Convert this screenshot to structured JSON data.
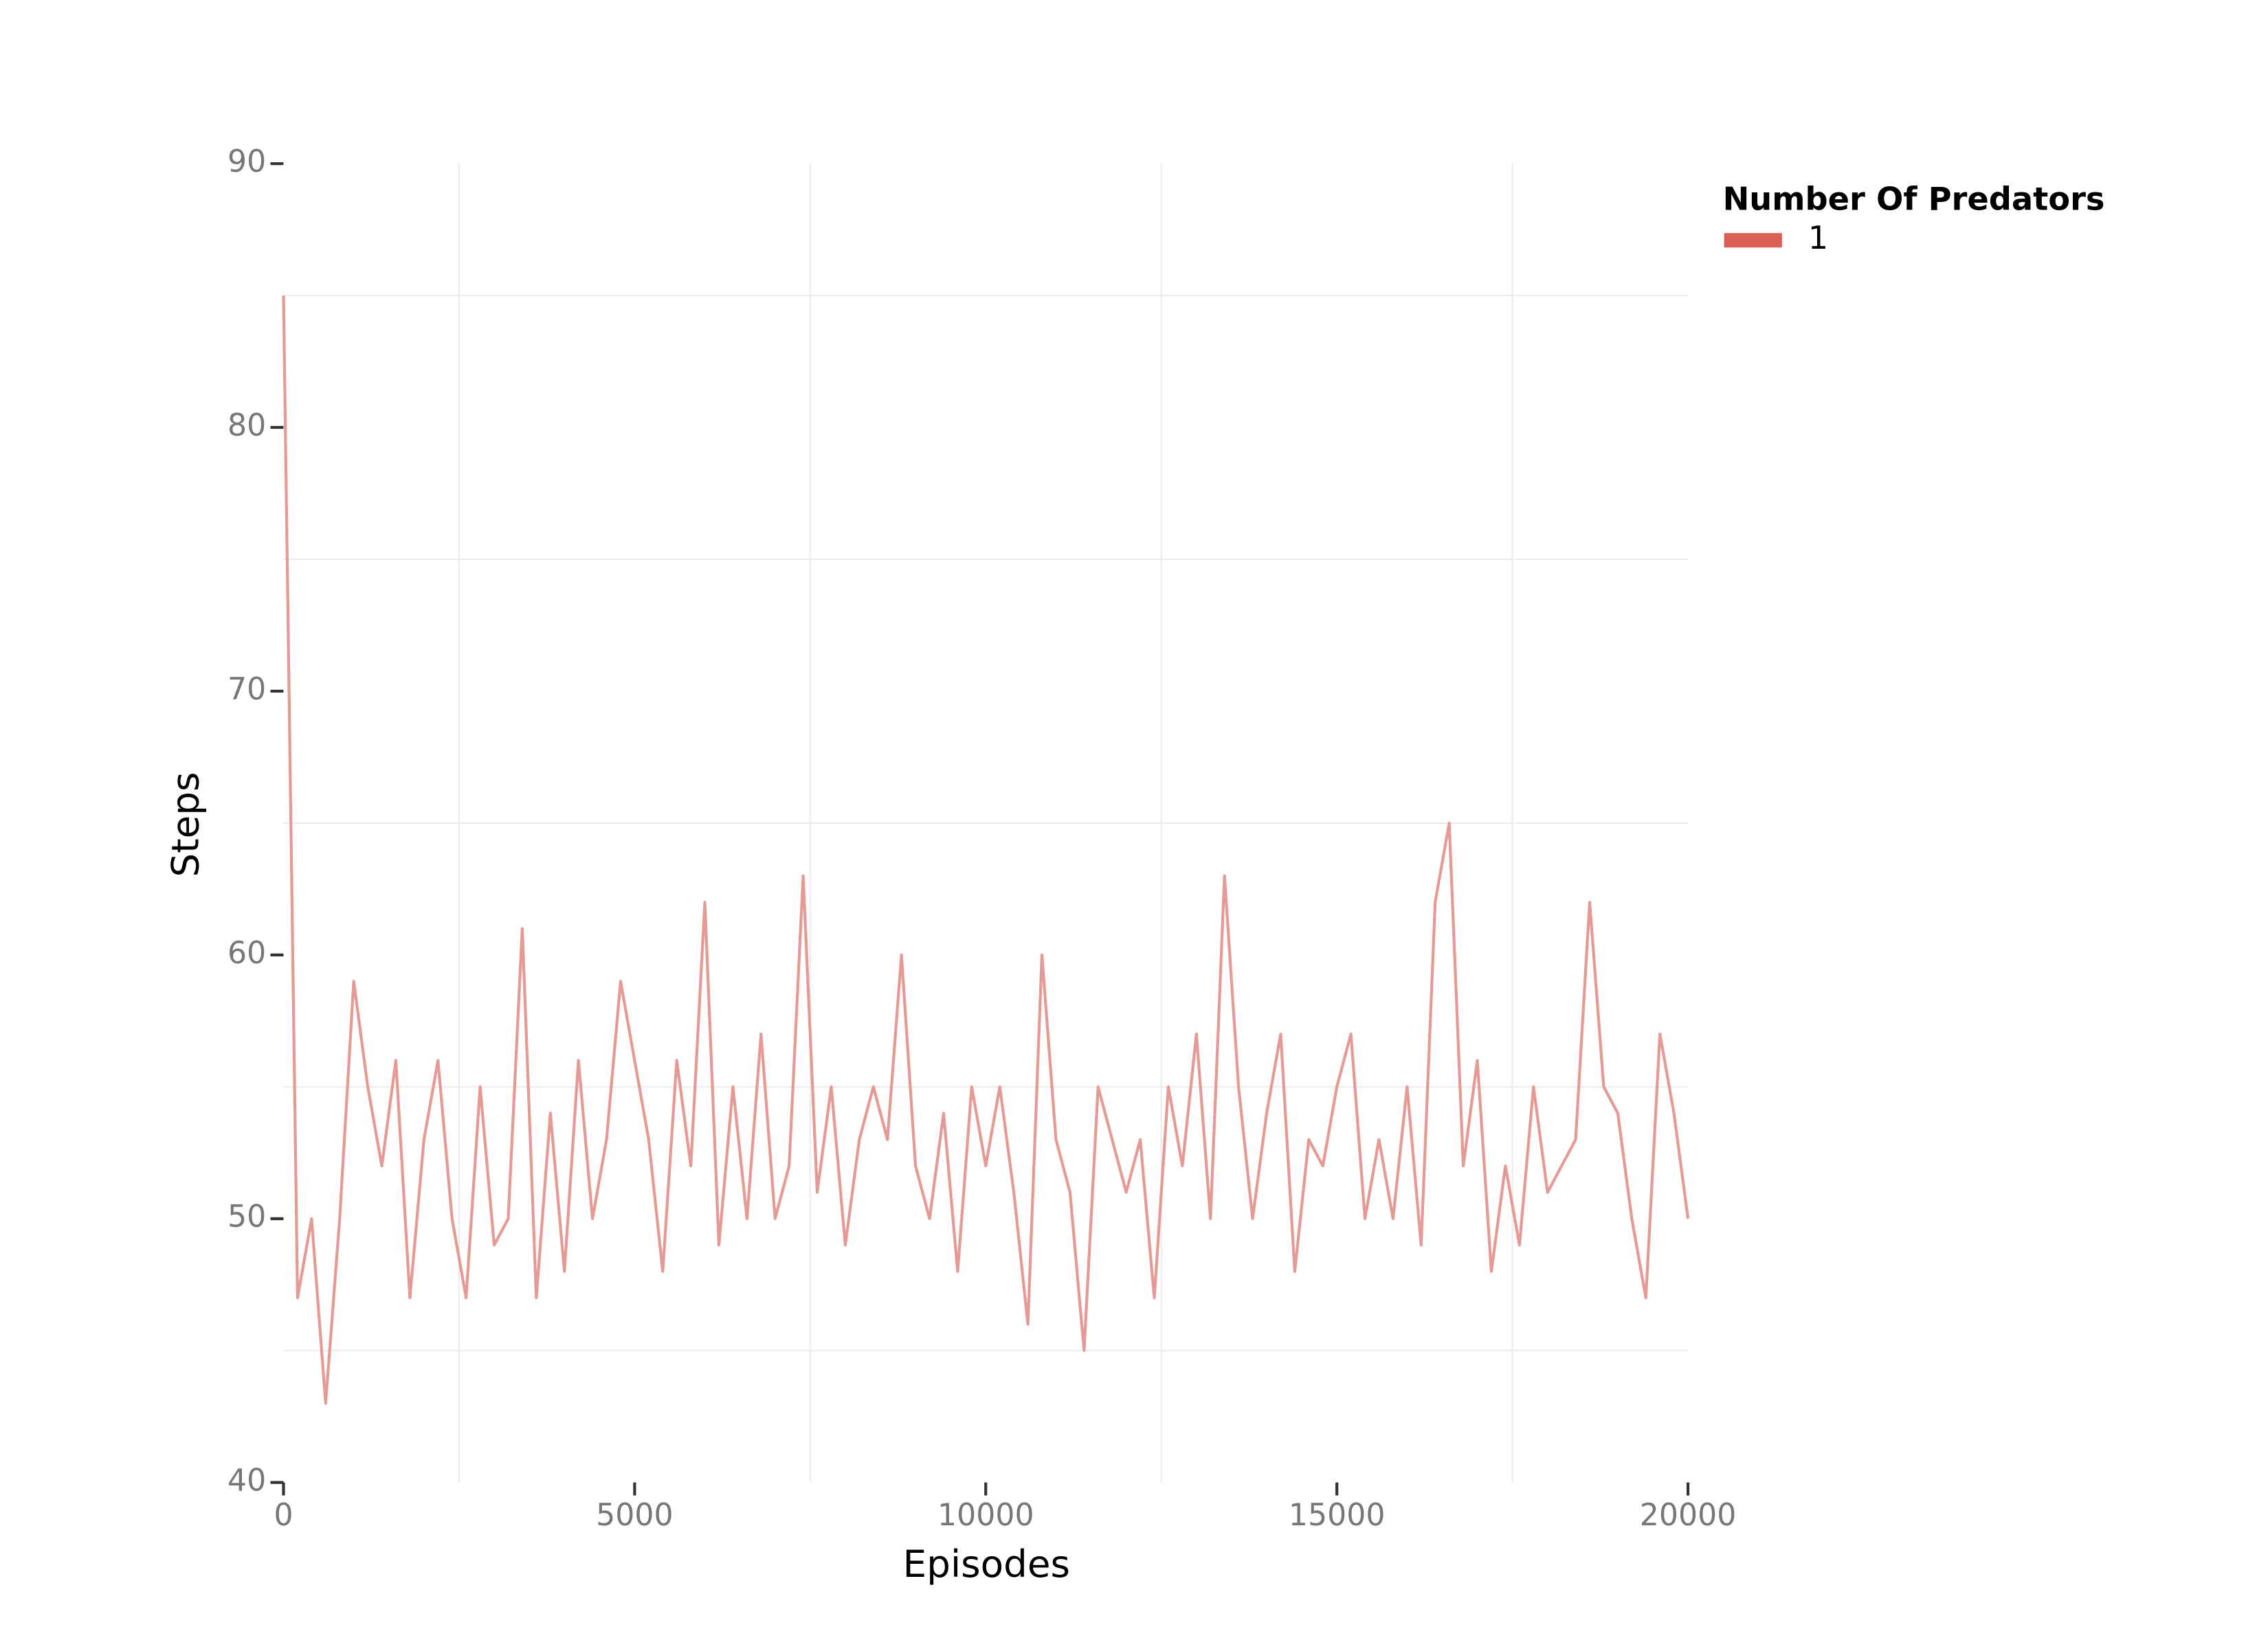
{
  "chart_data": {
    "type": "line",
    "x_label": "Episodes",
    "y_label": "Steps",
    "legend_title": "Number Of Predators",
    "legend": "top-right outside",
    "x": [
      0,
      200,
      400,
      600,
      800,
      1000,
      1200,
      1400,
      1600,
      1800,
      2000,
      2200,
      2400,
      2600,
      2800,
      3000,
      3200,
      3400,
      3600,
      3800,
      4000,
      4200,
      4400,
      4600,
      4800,
      5000,
      5200,
      5400,
      5600,
      5800,
      6000,
      6200,
      6400,
      6600,
      6800,
      7000,
      7200,
      7400,
      7600,
      7800,
      8000,
      8200,
      8400,
      8600,
      8800,
      9000,
      9200,
      9400,
      9600,
      9800,
      10000,
      10200,
      10400,
      10600,
      10800,
      11000,
      11200,
      11400,
      11600,
      11800,
      12000,
      12200,
      12400,
      12600,
      12800,
      13000,
      13200,
      13400,
      13600,
      13800,
      14000,
      14200,
      14400,
      14600,
      14800,
      15000,
      15200,
      15400,
      15600,
      15800,
      16000,
      16200,
      16400,
      16600,
      16800,
      17000,
      17200,
      17400,
      17600,
      17800,
      18000,
      18200,
      18400,
      18600,
      18800,
      19000,
      19200,
      19400,
      19600,
      19800,
      20000
    ],
    "series": [
      {
        "name": "1",
        "color": "#e69a95",
        "legend_color": "#db5f57",
        "values": [
          85,
          47,
          50,
          43,
          50,
          59,
          55,
          52,
          56,
          47,
          53,
          56,
          50,
          47,
          55,
          49,
          50,
          61,
          47,
          54,
          48,
          56,
          50,
          53,
          59,
          56,
          53,
          48,
          56,
          52,
          62,
          49,
          55,
          50,
          57,
          50,
          52,
          63,
          51,
          55,
          49,
          53,
          55,
          53,
          60,
          52,
          50,
          54,
          48,
          55,
          52,
          55,
          51,
          46,
          60,
          53,
          51,
          45,
          55,
          53,
          51,
          53,
          47,
          55,
          52,
          57,
          50,
          63,
          55,
          50,
          54,
          57,
          48,
          53,
          52,
          55,
          57,
          50,
          53,
          50,
          55,
          49,
          62,
          65,
          52,
          56,
          48,
          52,
          49,
          55,
          51,
          52,
          53,
          62,
          55,
          54,
          50,
          47,
          57,
          54,
          50
        ]
      }
    ],
    "xlim": [
      0,
      20000
    ],
    "xticks": [
      0,
      5000,
      10000,
      15000,
      20000
    ],
    "ylim": [
      40,
      90
    ],
    "yticks": [
      40,
      50,
      60,
      70,
      80,
      90
    ],
    "x_minor_ticks": [
      2500,
      7500,
      12500,
      17500
    ],
    "y_minor_ticks": [
      45,
      55,
      65,
      75,
      85
    ],
    "grid": true
  }
}
